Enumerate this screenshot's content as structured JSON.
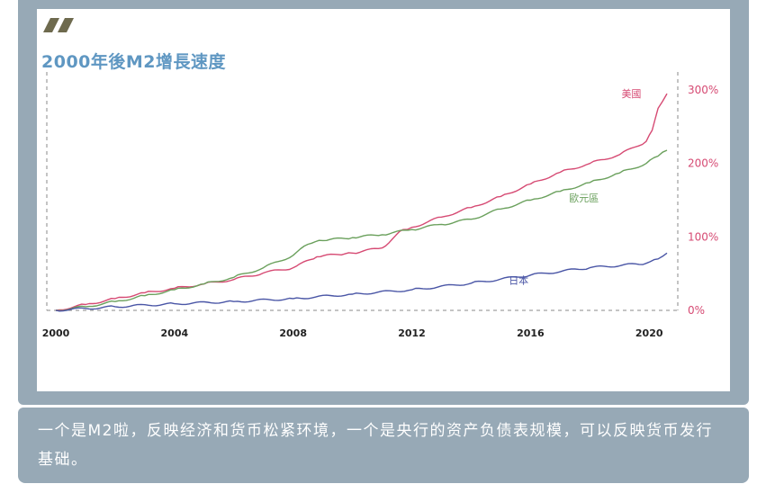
{
  "caption": "一个是M2啦，反映经济和货币松紧环境，一个是央行的资产负债表规模，可以反映货币发行基础。",
  "chart_data": {
    "type": "line",
    "title": "2000年後M2增長速度",
    "xlabel": "",
    "ylabel": "",
    "xlim": [
      2000,
      2020.6
    ],
    "ylim": [
      0,
      300
    ],
    "x_ticks": [
      "2000",
      "2004",
      "2008",
      "2012",
      "2016",
      "2020"
    ],
    "y_ticks": [
      "0%",
      "100%",
      "200%",
      "300%"
    ],
    "grid": false,
    "series": [
      {
        "name": "美國",
        "color": "#d64a73",
        "x": [
          2000,
          2001,
          2002,
          2003,
          2004,
          2005,
          2006,
          2007,
          2008,
          2008.8,
          2009.5,
          2010,
          2011,
          2011.7,
          2012,
          2013,
          2014,
          2015,
          2016,
          2017,
          2018,
          2019,
          2019.9,
          2020.1,
          2020.3,
          2020.6
        ],
        "values": [
          0,
          8,
          16,
          24,
          30,
          36,
          42,
          51,
          58,
          73,
          76,
          78,
          85,
          110,
          113,
          127,
          140,
          155,
          172,
          188,
          200,
          212,
          230,
          245,
          275,
          295
        ]
      },
      {
        "name": "歐元區",
        "color": "#6aa05c",
        "x": [
          2000,
          2001,
          2002,
          2003,
          2004,
          2005,
          2006,
          2007,
          2008,
          2008.5,
          2009,
          2010,
          2011,
          2012,
          2013,
          2014,
          2015,
          2016,
          2017,
          2018,
          2019,
          2019.9,
          2020.3,
          2020.6
        ],
        "values": [
          0,
          5,
          12,
          20,
          28,
          36,
          45,
          58,
          75,
          90,
          95,
          99,
          103,
          110,
          117,
          124,
          138,
          150,
          162,
          174,
          187,
          200,
          210,
          218
        ]
      },
      {
        "name": "日本",
        "color": "#4a56a6",
        "x": [
          2000,
          2002,
          2004,
          2006,
          2008,
          2010,
          2012,
          2014,
          2016,
          2018,
          2019.9,
          2020.3,
          2020.6
        ],
        "values": [
          0,
          5,
          9,
          12,
          16,
          22,
          28,
          37,
          48,
          58,
          64,
          70,
          78
        ]
      }
    ]
  }
}
